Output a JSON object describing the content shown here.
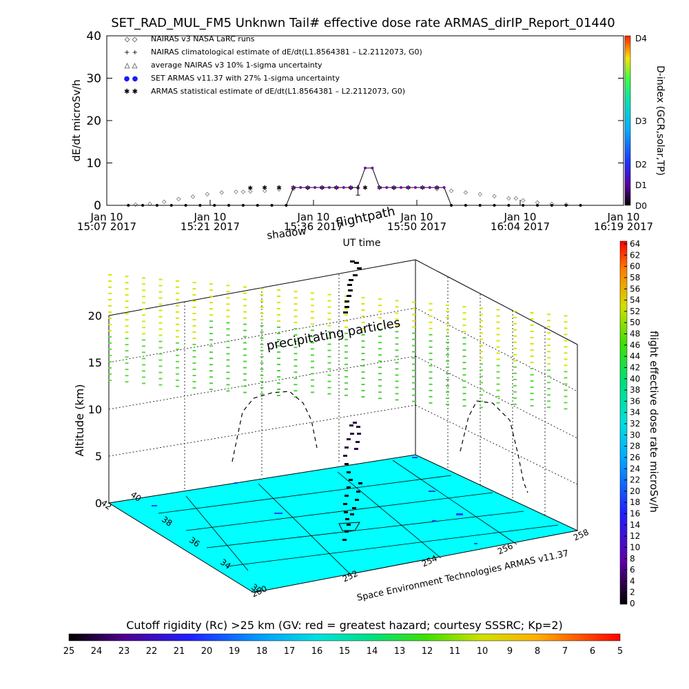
{
  "figure": {
    "title": "SET_RAD_MUL_FM5 Unknwn Tail#  effective dose rate ARMAS_dirIP_Report_01440",
    "footer_credit": "Space Environment Technologies ARMAS v11.37",
    "colorbar_bottom_title": "Cutoff rigidity (Rc) >25 km (GV: red = greatest hazard; courtesy SSSRC; Kp=2)",
    "colorbar_bottom_ticks": [
      "25",
      "24",
      "23",
      "22",
      "21",
      "20",
      "19",
      "18",
      "17",
      "16",
      "15",
      "14",
      "13",
      "12",
      "11",
      "10",
      "9",
      "8",
      "7",
      "6",
      "5"
    ],
    "colorbar_right_label": "flight effective dose rate microSv/h",
    "colorbar_right_ticks": [
      "0",
      "2",
      "4",
      "6",
      "8",
      "10",
      "12",
      "14",
      "16",
      "18",
      "20",
      "22",
      "24",
      "26",
      "28",
      "30",
      "32",
      "34",
      "36",
      "38",
      "40",
      "42",
      "44",
      "46",
      "48",
      "50",
      "52",
      "54",
      "56",
      "58",
      "60",
      "62",
      "64"
    ],
    "dindex_label": "D-index (GCR,solar,TP)",
    "dindex_ticks": [
      "D0",
      "D1",
      "D2",
      "D3",
      "D4"
    ],
    "annot_shadow": "shadow",
    "annot_flightpath": "flightpath",
    "annot_precip": "precipitating particles",
    "colors": {
      "surface": "#00ffff",
      "nairas_dose": "#7a00a8",
      "set_points": "#1a1aff",
      "precip_dash": "#d6e600"
    }
  },
  "chart_data": [
    {
      "type": "scatter",
      "title": "",
      "xlabel": "UT time",
      "ylabel": "dE/dt microSv/h",
      "ylim": [
        0,
        40
      ],
      "yticks": [
        "0",
        "10",
        "20",
        "30",
        "40"
      ],
      "xticks": [
        {
          "date": "Jan 10",
          "time": "15:07 2017"
        },
        {
          "date": "Jan 10",
          "time": "15:21 2017"
        },
        {
          "date": "Jan 10",
          "time": "15:36 2017"
        },
        {
          "date": "Jan 10",
          "time": "15:50 2017"
        },
        {
          "date": "Jan 10",
          "time": "16:04 2017"
        },
        {
          "date": "Jan 10",
          "time": "16:19 2017"
        }
      ],
      "x_range_minutes": [
        0,
        72
      ],
      "legend": [
        {
          "symbol": "◇ ◇",
          "text": "NAIRAS v3 NASA LaRC runs"
        },
        {
          "symbol": "+ +",
          "text": "NAIRAS climatological estimate of dE/dt(L1.8564381 – L2.2112073, G0)"
        },
        {
          "symbol": "△ △",
          "text": "average NAIRAS v3 10% 1-sigma uncertainty"
        },
        {
          "symbol": "● ●",
          "text": "SET ARMAS v11.37 with 27% 1-sigma uncertainty"
        },
        {
          "symbol": "✱ ✱",
          "text": "ARMAS statistical estimate of dE/dt(L1.8564381 – L2.2112073, G0)"
        }
      ],
      "series": [
        {
          "name": "NAIRAS v3 NASA LaRC runs",
          "x": [
            4,
            6,
            8,
            10,
            12,
            14,
            16,
            18,
            19,
            20,
            22,
            24,
            26,
            28,
            30,
            32,
            34,
            35,
            40,
            46,
            48,
            50,
            52,
            54,
            56,
            57,
            58,
            60,
            62,
            64
          ],
          "y": [
            0.3,
            0.5,
            1.0,
            1.6,
            2.2,
            2.8,
            3.2,
            3.3,
            3.3,
            3.4,
            3.6,
            3.9,
            4.1,
            4.2,
            4.3,
            4.3,
            4.2,
            4.2,
            4.2,
            4.0,
            3.6,
            3.2,
            2.8,
            2.3,
            1.8,
            1.8,
            1.3,
            0.8,
            0.5,
            0.3
          ]
        },
        {
          "name": "ARMAS statistical estimate",
          "x": [
            20,
            22,
            24,
            26,
            28,
            30,
            32,
            34,
            36,
            38,
            40,
            42,
            44,
            46
          ],
          "y": [
            4.2,
            4.3,
            4.3,
            4.3,
            4.3,
            4.3,
            4.3,
            4.3,
            4.3,
            4.3,
            4.3,
            4.3,
            4.3,
            4.3
          ]
        },
        {
          "name": "ARMAS dose rate",
          "x": [
            3,
            5,
            7,
            9,
            11,
            13,
            15,
            17,
            19,
            21,
            23,
            25,
            26,
            27,
            28,
            29,
            30,
            31,
            32,
            33,
            34,
            35,
            36,
            37,
            38,
            39,
            40,
            41,
            42,
            43,
            44,
            45,
            46,
            47,
            48,
            50,
            52,
            54,
            56,
            58,
            60,
            62,
            64,
            66
          ],
          "y": [
            0,
            0,
            0,
            0,
            0,
            0,
            0,
            0,
            0,
            0,
            0,
            0,
            4.2,
            4.2,
            4.2,
            4.2,
            4.2,
            4.2,
            4.2,
            4.2,
            4.2,
            4.2,
            8.8,
            8.8,
            4.2,
            4.2,
            4.2,
            4.2,
            4.2,
            4.2,
            4.2,
            4.2,
            4.2,
            4.2,
            0,
            0,
            0,
            0,
            0,
            0,
            0,
            0,
            0,
            0
          ]
        }
      ],
      "error_bar": {
        "x": 35,
        "y": 3.6,
        "err": 1.2
      }
    },
    {
      "type": "scatter",
      "title": "",
      "zlabel": "Altitude (km)",
      "z_ticks": [
        "0",
        "5",
        "10",
        "15",
        "20"
      ],
      "lat_ticks": [
        "32",
        "34",
        "36",
        "38",
        "40",
        "42"
      ],
      "lon_ticks": [
        "250",
        "252",
        "254",
        "256",
        "258"
      ],
      "series": [
        {
          "name": "flightpath",
          "altitude_km": [
            0,
            1,
            2,
            3,
            4,
            5,
            6,
            7,
            8,
            9,
            10,
            11,
            11.5,
            12,
            12.3,
            12.5,
            12.6,
            12.5,
            12.3,
            12,
            11.5,
            11,
            10,
            9,
            8,
            7,
            6,
            5,
            4,
            3,
            2,
            1,
            0
          ]
        }
      ]
    }
  ]
}
